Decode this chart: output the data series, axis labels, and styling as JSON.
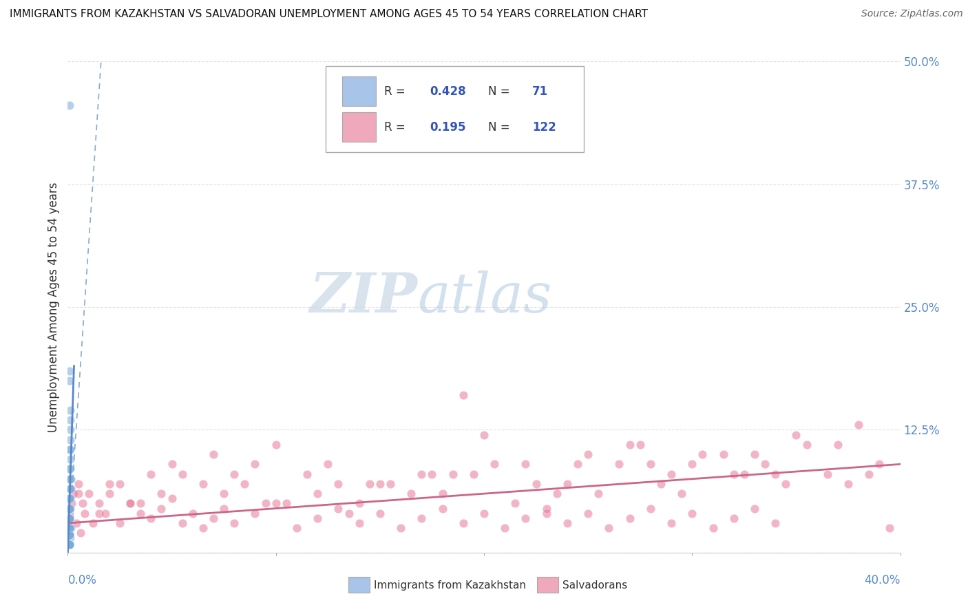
{
  "title": "IMMIGRANTS FROM KAZAKHSTAN VS SALVADORAN UNEMPLOYMENT AMONG AGES 45 TO 54 YEARS CORRELATION CHART",
  "source": "Source: ZipAtlas.com",
  "ylabel_label": "Unemployment Among Ages 45 to 54 years",
  "legend_entries": [
    {
      "label": "Immigrants from Kazakhstan",
      "R": "0.428",
      "N": "71",
      "color": "#a8c4e8",
      "dot_color": "#7aaad8"
    },
    {
      "label": "Salvadorans",
      "R": "0.195",
      "N": "122",
      "color": "#f0a8bc",
      "dot_color": "#e87898"
    }
  ],
  "blue_scatter_x": [
    0.0008,
    0.001,
    0.0012,
    0.0015,
    0.0008,
    0.001,
    0.0005,
    0.0008,
    0.001,
    0.0012,
    0.0006,
    0.0009,
    0.0011,
    0.0007,
    0.0013,
    0.0008,
    0.001,
    0.0006,
    0.0012,
    0.0009,
    0.0014,
    0.0011,
    0.0008,
    0.001,
    0.0007,
    0.0013,
    0.0009,
    0.0008,
    0.0012,
    0.001,
    0.0006,
    0.0015,
    0.0009,
    0.0011,
    0.0008,
    0.0007,
    0.001,
    0.0008,
    0.0013,
    0.0009,
    0.0007,
    0.0012,
    0.0008,
    0.001,
    0.0009,
    0.0006,
    0.0011,
    0.0008,
    0.0009,
    0.0013,
    0.0008,
    0.0007,
    0.001,
    0.0009,
    0.0008,
    0.0011,
    0.0007,
    0.0009,
    0.0008,
    0.001,
    0.0007,
    0.0009,
    0.0008,
    0.0007,
    0.001,
    0.0008,
    0.0009,
    0.0007,
    0.0008,
    0.0007,
    0.0009
  ],
  "blue_scatter_y": [
    0.455,
    0.008,
    0.015,
    0.025,
    0.185,
    0.175,
    0.01,
    0.045,
    0.018,
    0.075,
    0.008,
    0.055,
    0.065,
    0.035,
    0.085,
    0.018,
    0.105,
    0.008,
    0.125,
    0.025,
    0.065,
    0.045,
    0.018,
    0.035,
    0.008,
    0.135,
    0.055,
    0.025,
    0.095,
    0.018,
    0.008,
    0.075,
    0.018,
    0.065,
    0.035,
    0.008,
    0.085,
    0.018,
    0.115,
    0.025,
    0.008,
    0.145,
    0.018,
    0.075,
    0.035,
    0.008,
    0.055,
    0.018,
    0.035,
    0.105,
    0.018,
    0.008,
    0.045,
    0.025,
    0.018,
    0.065,
    0.008,
    0.035,
    0.018,
    0.055,
    0.008,
    0.025,
    0.018,
    0.008,
    0.045,
    0.018,
    0.025,
    0.008,
    0.018,
    0.008,
    0.035
  ],
  "pink_scatter_x": [
    0.05,
    0.1,
    0.15,
    0.2,
    0.25,
    0.3,
    0.35,
    0.395,
    0.02,
    0.07,
    0.12,
    0.17,
    0.22,
    0.27,
    0.32,
    0.37,
    0.03,
    0.08,
    0.13,
    0.18,
    0.23,
    0.28,
    0.33,
    0.38,
    0.04,
    0.09,
    0.14,
    0.19,
    0.24,
    0.29,
    0.34,
    0.39,
    0.005,
    0.055,
    0.105,
    0.155,
    0.205,
    0.255,
    0.305,
    0.355,
    0.015,
    0.065,
    0.115,
    0.165,
    0.215,
    0.265,
    0.315,
    0.365,
    0.025,
    0.075,
    0.125,
    0.175,
    0.225,
    0.275,
    0.325,
    0.375,
    0.035,
    0.085,
    0.135,
    0.185,
    0.235,
    0.285,
    0.335,
    0.385,
    0.045,
    0.095,
    0.145,
    0.195,
    0.245,
    0.295,
    0.345,
    0.001,
    0.002,
    0.003,
    0.004,
    0.005,
    0.006,
    0.007,
    0.008,
    0.01,
    0.012,
    0.015,
    0.018,
    0.02,
    0.025,
    0.03,
    0.035,
    0.04,
    0.045,
    0.05,
    0.055,
    0.06,
    0.065,
    0.07,
    0.075,
    0.08,
    0.09,
    0.1,
    0.11,
    0.12,
    0.13,
    0.14,
    0.15,
    0.16,
    0.17,
    0.18,
    0.19,
    0.2,
    0.21,
    0.22,
    0.23,
    0.24,
    0.25,
    0.26,
    0.27,
    0.28,
    0.29,
    0.3,
    0.31,
    0.32,
    0.33,
    0.34
  ],
  "pink_scatter_y": [
    0.09,
    0.11,
    0.07,
    0.12,
    0.1,
    0.09,
    0.12,
    0.025,
    0.07,
    0.1,
    0.06,
    0.08,
    0.09,
    0.11,
    0.08,
    0.11,
    0.05,
    0.08,
    0.07,
    0.06,
    0.04,
    0.09,
    0.1,
    0.13,
    0.08,
    0.09,
    0.05,
    0.16,
    0.07,
    0.08,
    0.08,
    0.09,
    0.06,
    0.08,
    0.05,
    0.07,
    0.09,
    0.06,
    0.1,
    0.11,
    0.04,
    0.07,
    0.08,
    0.06,
    0.05,
    0.09,
    0.1,
    0.08,
    0.07,
    0.06,
    0.09,
    0.08,
    0.07,
    0.11,
    0.08,
    0.07,
    0.05,
    0.07,
    0.04,
    0.08,
    0.06,
    0.07,
    0.09,
    0.08,
    0.06,
    0.05,
    0.07,
    0.08,
    0.09,
    0.06,
    0.07,
    0.04,
    0.05,
    0.06,
    0.03,
    0.07,
    0.02,
    0.05,
    0.04,
    0.06,
    0.03,
    0.05,
    0.04,
    0.06,
    0.03,
    0.05,
    0.04,
    0.035,
    0.045,
    0.055,
    0.03,
    0.04,
    0.025,
    0.035,
    0.045,
    0.03,
    0.04,
    0.05,
    0.025,
    0.035,
    0.045,
    0.03,
    0.04,
    0.025,
    0.035,
    0.045,
    0.03,
    0.04,
    0.025,
    0.035,
    0.045,
    0.03,
    0.04,
    0.025,
    0.035,
    0.045,
    0.03,
    0.04,
    0.025,
    0.035,
    0.045,
    0.03
  ],
  "blue_trend_x": [
    0.0,
    0.016
  ],
  "blue_trend_y": [
    0.0,
    0.5
  ],
  "pink_trend_x": [
    0.0,
    0.4
  ],
  "pink_trend_y": [
    0.03,
    0.09
  ],
  "xlim": [
    0.0,
    0.4
  ],
  "ylim": [
    0.0,
    0.5
  ],
  "xticks": [
    0.0,
    0.1,
    0.2,
    0.3,
    0.4
  ],
  "yticks": [
    0.0,
    0.125,
    0.25,
    0.375,
    0.5
  ],
  "grid_color": "#dddddd",
  "bg_color": "#ffffff",
  "scatter_alpha": 0.55,
  "scatter_size": 80
}
